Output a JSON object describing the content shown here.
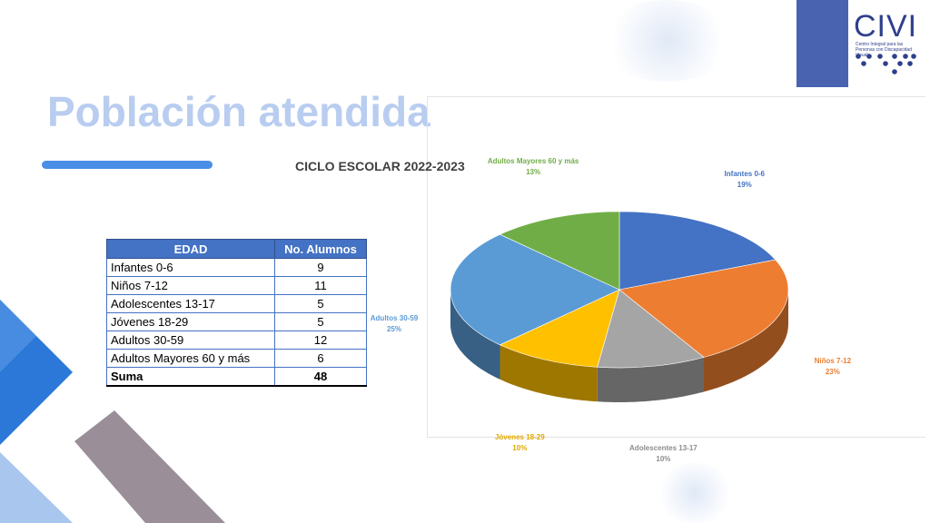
{
  "logo": {
    "text": "CIVI",
    "subtitle": "Centro Integral para las Personas con Discapacidad Visual"
  },
  "title": "Población atendida",
  "table": {
    "headers": [
      "EDAD",
      "No. Alumnos"
    ],
    "rows": [
      {
        "label": "Infantes 0-6",
        "value": "9"
      },
      {
        "label": "Niños 7-12",
        "value": "11"
      },
      {
        "label": "Adolescentes 13-17",
        "value": "5"
      },
      {
        "label": "Jóvenes 18-29",
        "value": "5"
      },
      {
        "label": "Adultos 30-59",
        "value": "12"
      },
      {
        "label": "Adultos Mayores 60 y  más",
        "value": "6"
      }
    ],
    "total": {
      "label": "Suma",
      "value": "48"
    }
  },
  "chart_data": {
    "type": "pie",
    "title": "CICLO ESCOLAR 2022-2023",
    "categories": [
      "Infantes 0-6",
      "Niños 7-12",
      "Adolescentes 13-17",
      "Jóvenes 18-29",
      "Adultos 30-59",
      "Adultos Mayores 60 y  más"
    ],
    "values": [
      9,
      11,
      5,
      5,
      12,
      6
    ],
    "percent_labels": [
      "19%",
      "23%",
      "10%",
      "10%",
      "25%",
      "13%"
    ],
    "colors": [
      "#4472c4",
      "#ed7d31",
      "#a5a5a5",
      "#ffc000",
      "#5b9bd5",
      "#70ad47"
    ],
    "style": "3d",
    "legend": "none"
  }
}
